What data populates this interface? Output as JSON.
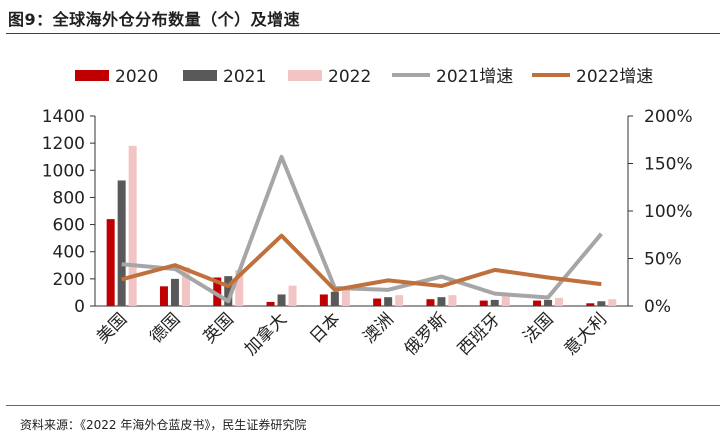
{
  "title": "图9：全球海外仓分布数量（个）及增速",
  "source": "资料来源：《2022 年海外仓蓝皮书》，民生证券研究院",
  "colors": {
    "s2020": "#c00000",
    "s2021": "#595959",
    "s2022": "#f2c4c4",
    "g2021": "#a6a6a6",
    "g2022": "#c0703c",
    "axis": "#333333"
  },
  "chart_data": {
    "type": "bar+line",
    "categories": [
      "美国",
      "德国",
      "英国",
      "加拿大",
      "日本",
      "澳洲",
      "俄罗斯",
      "西班牙",
      "法国",
      "意大利"
    ],
    "series": [
      {
        "name": "2020",
        "kind": "bar",
        "axis": "left",
        "values": [
          640,
          145,
          210,
          30,
          85,
          55,
          50,
          40,
          40,
          20
        ]
      },
      {
        "name": "2021",
        "kind": "bar",
        "axis": "left",
        "values": [
          925,
          200,
          220,
          85,
          105,
          65,
          65,
          45,
          45,
          35
        ]
      },
      {
        "name": "2022",
        "kind": "bar",
        "axis": "left",
        "values": [
          1180,
          285,
          265,
          150,
          130,
          80,
          80,
          75,
          60,
          50
        ]
      },
      {
        "name": "2021增速",
        "kind": "line",
        "axis": "right",
        "values": [
          0.44,
          0.39,
          0.05,
          1.57,
          0.19,
          0.17,
          0.31,
          0.13,
          0.09,
          0.76
        ]
      },
      {
        "name": "2022增速",
        "kind": "line",
        "axis": "right",
        "values": [
          0.28,
          0.43,
          0.21,
          0.74,
          0.17,
          0.27,
          0.21,
          0.38,
          0.3,
          0.23
        ]
      }
    ],
    "left_axis": {
      "min": 0,
      "max": 1400,
      "ticks": [
        0,
        200,
        400,
        600,
        800,
        1000,
        1200,
        1400
      ]
    },
    "right_axis": {
      "min": 0,
      "max": 2,
      "ticks": [
        "0%",
        "50%",
        "100%",
        "150%",
        "200%"
      ]
    },
    "legend": [
      "2020",
      "2021",
      "2022",
      "2021增速",
      "2022增速"
    ],
    "legend_position": "top"
  }
}
